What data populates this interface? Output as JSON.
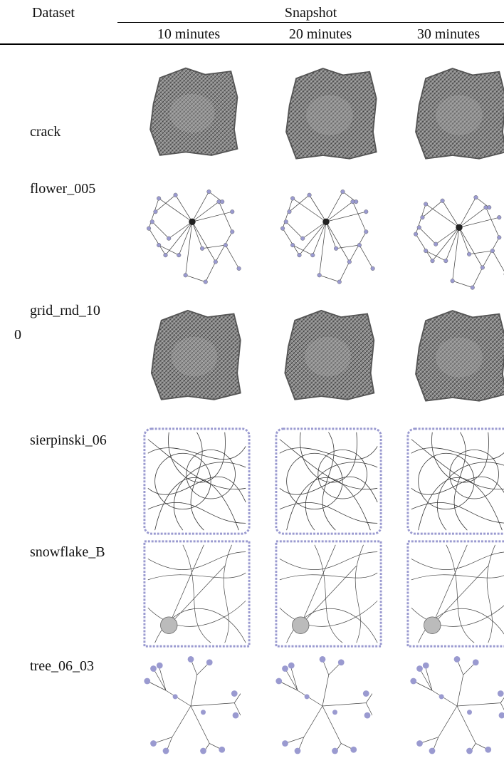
{
  "header": {
    "dataset": "Dataset",
    "snapshot": "Snapshot",
    "snapshots": [
      "10 minutes",
      "20 minutes",
      "30 minutes"
    ]
  },
  "rows": [
    "crack",
    "flower_005",
    "grid_rnd_100",
    "sierpinski_06",
    "snowflake_B",
    "tree_06_03"
  ]
}
